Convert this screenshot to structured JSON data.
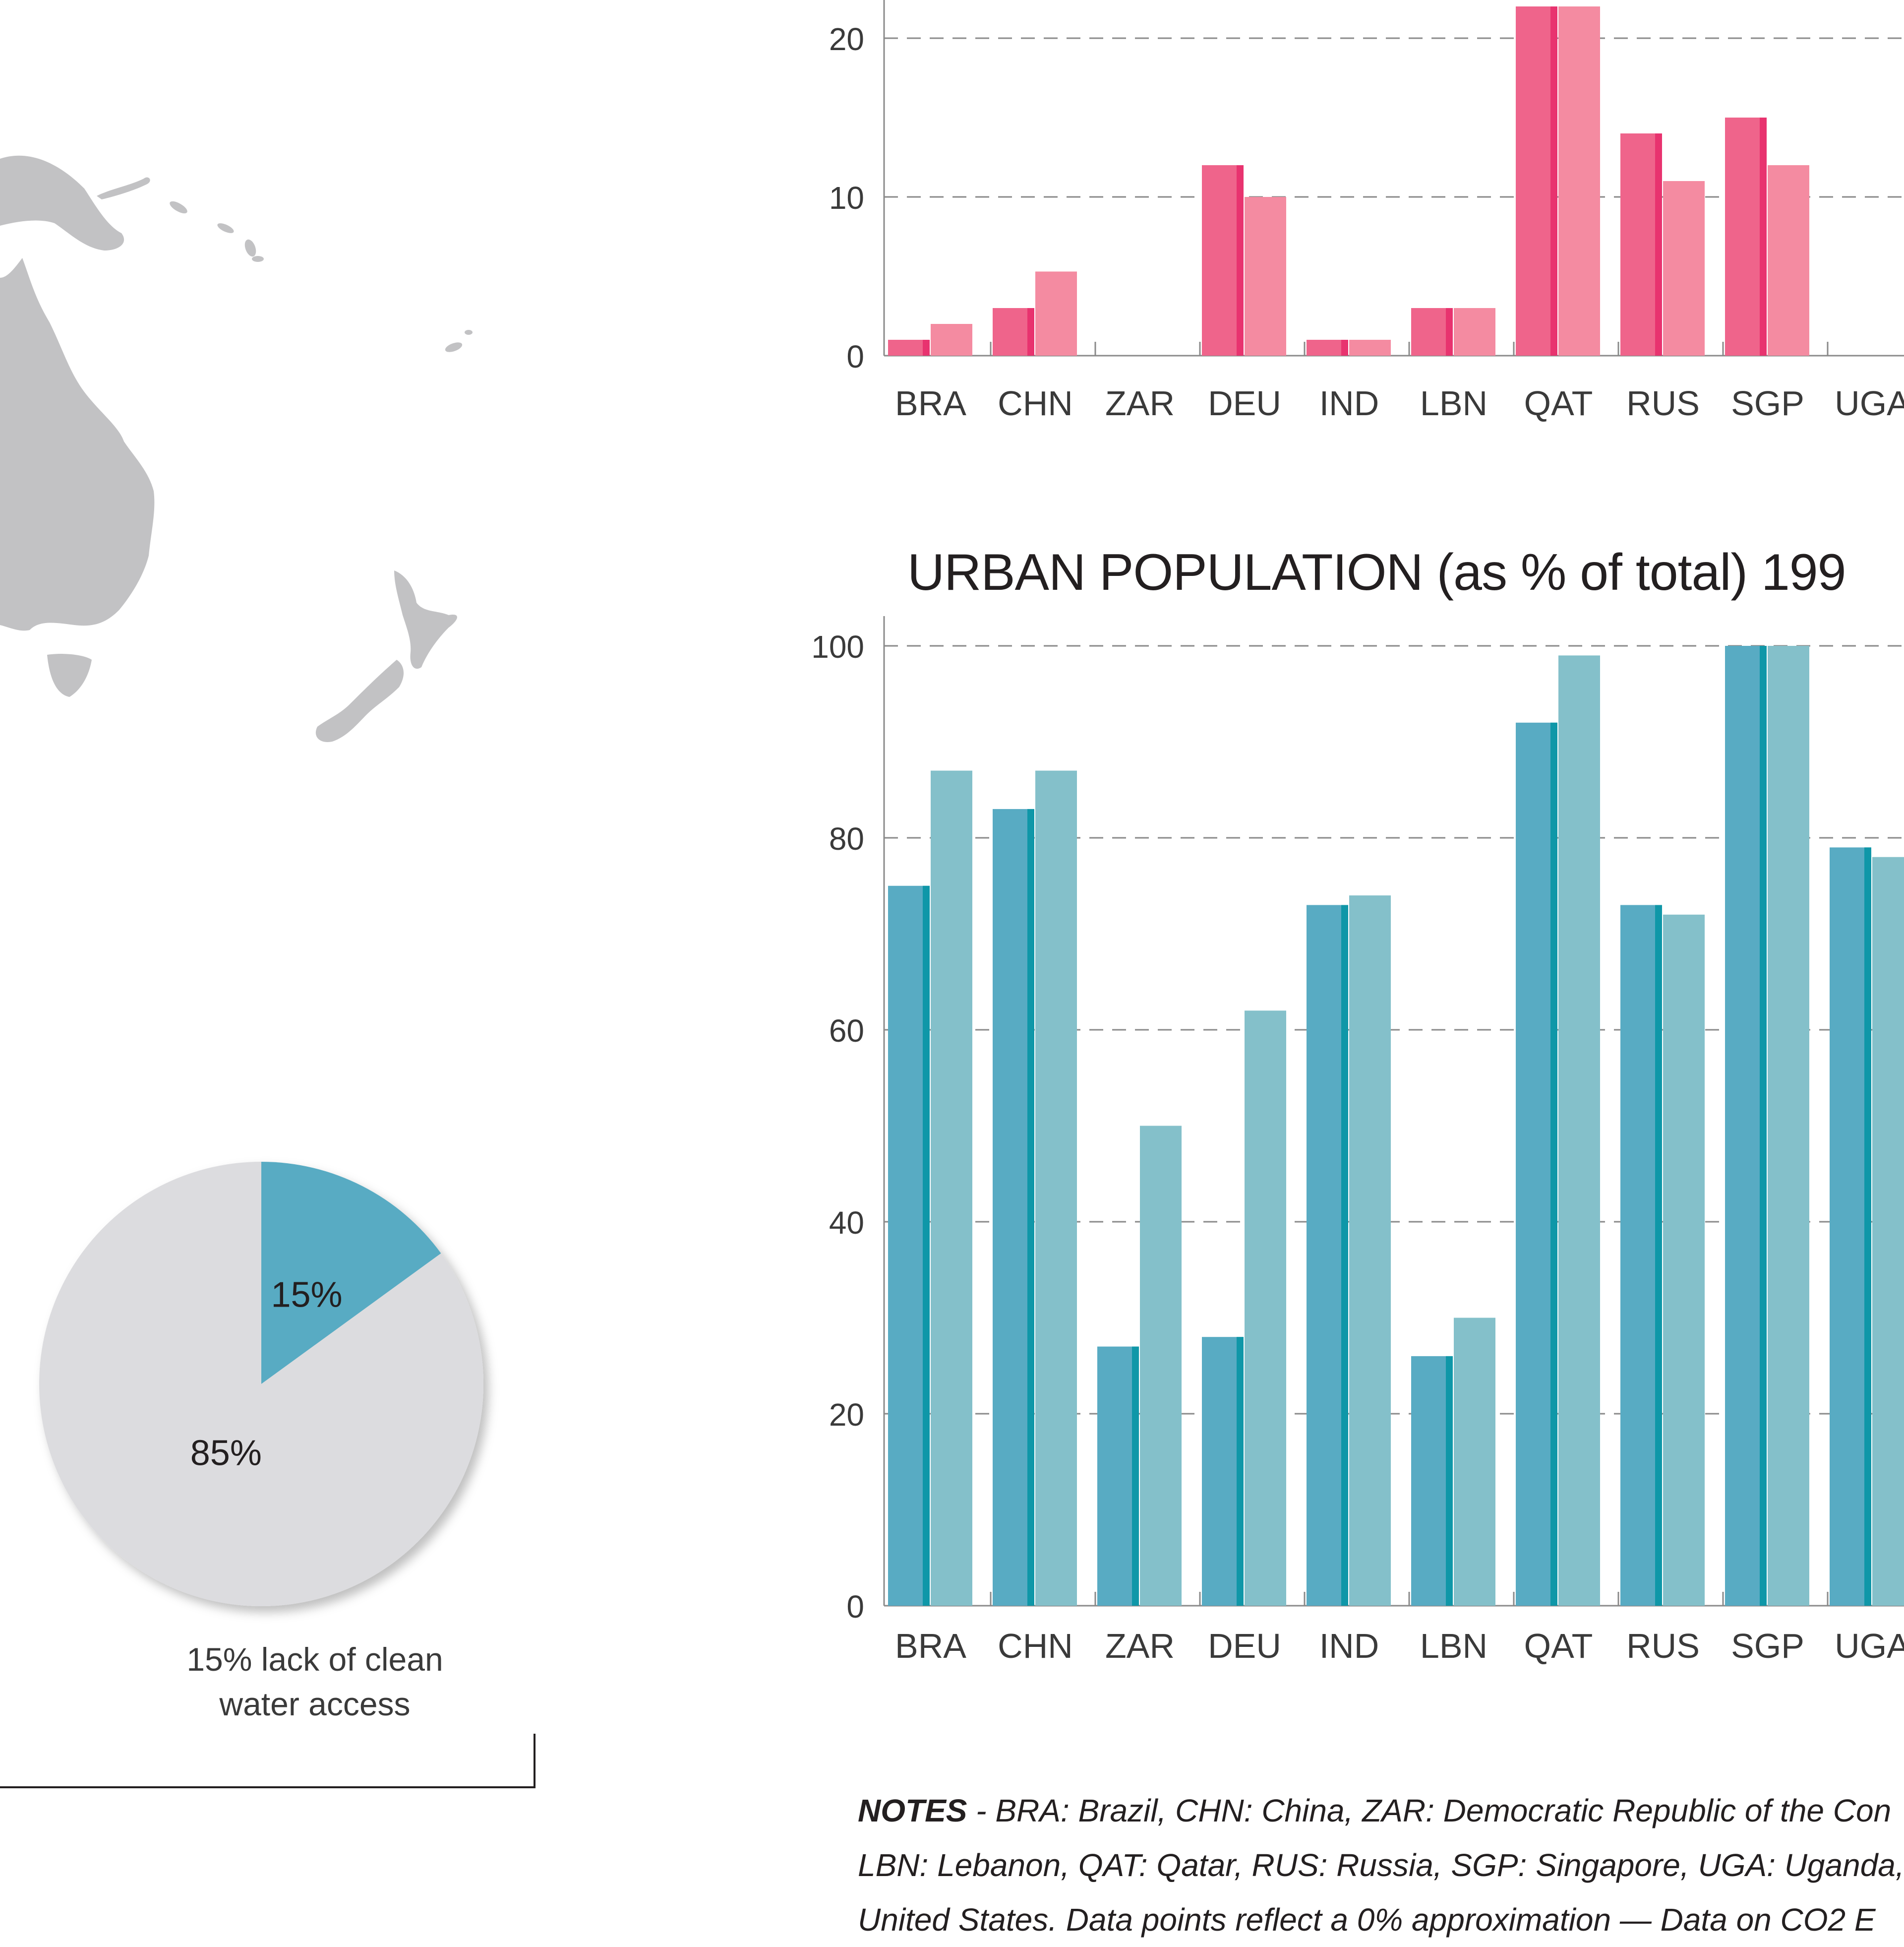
{
  "chart_data": [
    {
      "type": "bar",
      "title": "",
      "categories": [
        "BRA",
        "CHN",
        "ZAR",
        "DEU",
        "IND",
        "LBN",
        "QAT",
        "RUS",
        "SGP",
        "UGA"
      ],
      "series": [
        {
          "values": [
            1,
            3,
            0,
            12,
            1,
            3,
            22,
            14,
            15,
            0
          ],
          "color": "#ef648b"
        },
        {
          "values": [
            2,
            5.3,
            0,
            10,
            1,
            3,
            22,
            11,
            12,
            0
          ],
          "color": "#f48ba1"
        }
      ],
      "yticks": [
        0,
        10,
        20
      ],
      "ylim": [
        0,
        22
      ],
      "grid": true
    },
    {
      "type": "bar",
      "title": "URBAN POPULATION (as % of total) 199",
      "categories": [
        "BRA",
        "CHN",
        "ZAR",
        "DEU",
        "IND",
        "LBN",
        "QAT",
        "RUS",
        "SGP",
        "UGA"
      ],
      "series": [
        {
          "values": [
            75,
            83,
            27,
            28,
            73,
            26,
            92,
            73,
            100,
            79
          ],
          "color": "#58abc3"
        },
        {
          "values": [
            87,
            87,
            50,
            62,
            74,
            30,
            99,
            72,
            100,
            78
          ],
          "color": "#84c0ca"
        }
      ],
      "yticks": [
        0,
        20,
        40,
        60,
        80,
        100
      ],
      "ylim": [
        0,
        100
      ],
      "grid": true
    },
    {
      "type": "pie",
      "slices": [
        {
          "label": "15%",
          "value": 15,
          "color": "#58abc3"
        },
        {
          "label": "85%",
          "value": 85,
          "color": "#dcdcdf"
        }
      ],
      "caption": [
        "15% lack of clean",
        "water access"
      ]
    }
  ],
  "notes": {
    "head": "NOTES",
    "line1": " - BRA: Brazil, CHN: China, ZAR: Democratic Republic of the Con",
    "line2": "LBN: Lebanon, QAT: Qatar, RUS: Russia, SGP: Singapore, UGA: Uganda, A",
    "line3": "United States. Data points reflect a 0% approximation — Data on CO2 E"
  },
  "colors": {
    "map_land": "#c2c2c4",
    "axis": "#8a8a8a",
    "bar_edge_pink": "#e8336f",
    "bar_edge_teal": "#0f97a8"
  }
}
